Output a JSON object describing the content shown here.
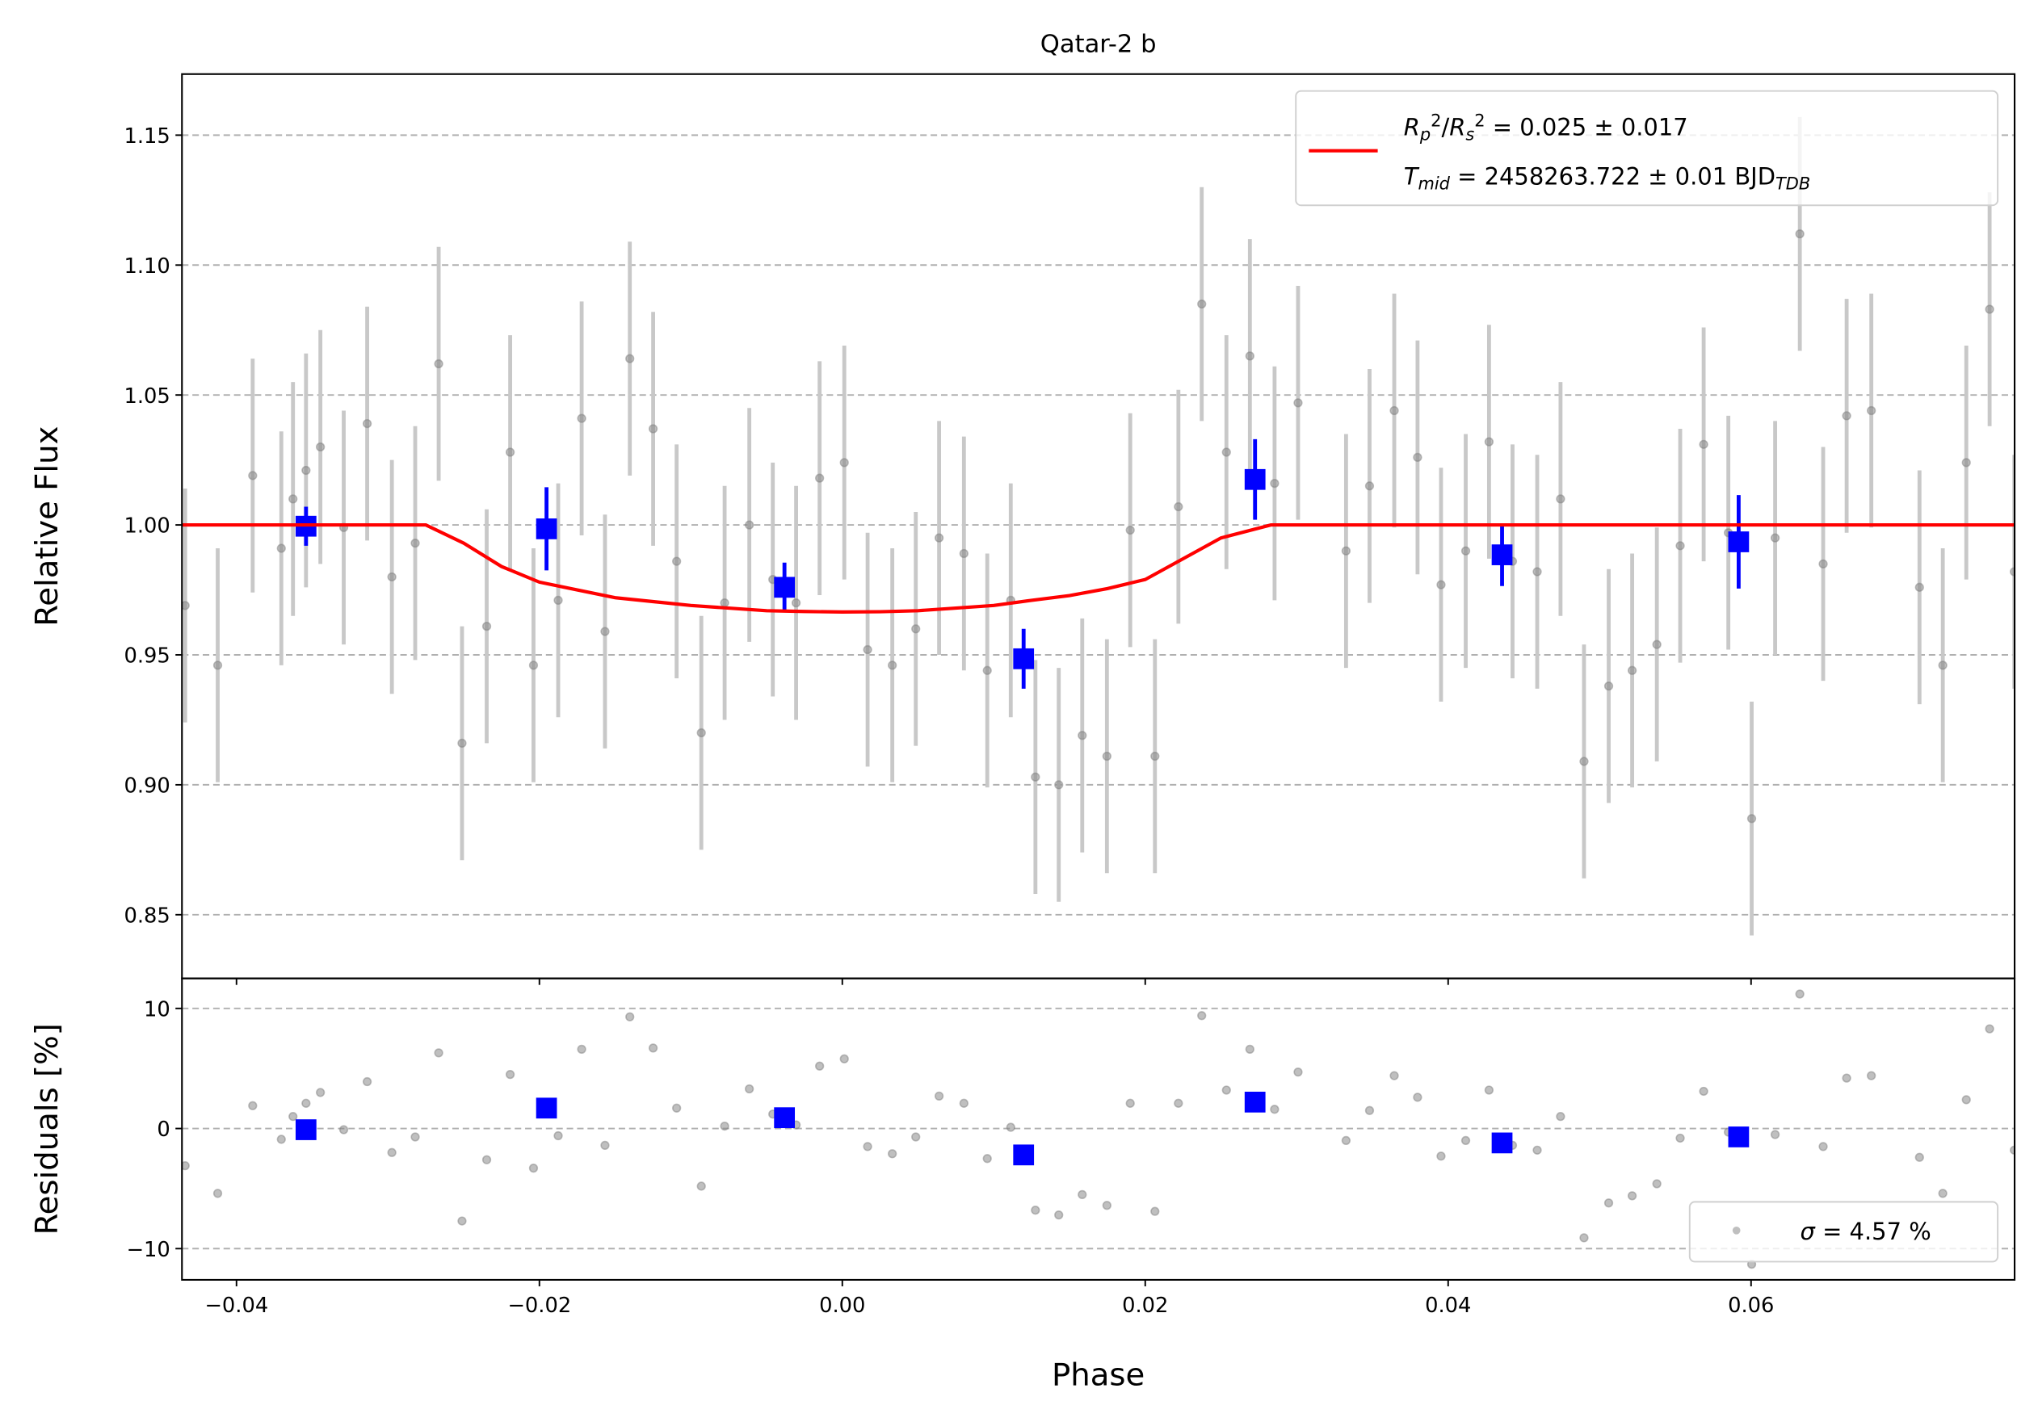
{
  "chart_data": [
    {
      "type": "scatter",
      "title": "Qatar-2 b",
      "ylabel": "Relative Flux",
      "xlim": [
        -0.0436,
        0.0774
      ],
      "ylim": [
        0.8255,
        1.1735
      ],
      "yticks": [
        0.85,
        {
          "value": 0.9,
          "label": "0.90"
        },
        0.95,
        {
          "value": 1.0,
          "label": "1.00"
        },
        1.05,
        {
          "value": 1.1,
          "label": "1.10"
        },
        1.15
      ],
      "grid": true,
      "legend": "upper right",
      "series": [
        {
          "kind": "points",
          "color": "#808080",
          "ecolor": "#c8c8c8",
          "yerr": 0.045,
          "x": [
            -0.04339,
            -0.04124,
            -0.03893,
            -0.03704,
            -0.03627,
            -0.03541,
            -0.03446,
            -0.03292,
            -0.03137,
            -0.02974,
            -0.0282,
            -0.02665,
            -0.02511,
            -0.02348,
            -0.02193,
            -0.02039,
            -0.01876,
            -0.01721,
            -0.01567,
            -0.01403,
            -0.01249,
            -0.01094,
            -0.00931,
            -0.00777,
            -0.00614,
            -0.00459,
            -0.00305,
            -0.0015,
            0.00013,
            0.00167,
            0.0033,
            0.00485,
            0.00639,
            0.00803,
            0.00957,
            0.01112,
            0.01275,
            0.01429,
            0.01584,
            0.01747,
            0.01901,
            0.02064,
            0.02219,
            0.02373,
            0.02536,
            0.02691,
            0.02854,
            0.03009,
            0.03326,
            0.03481,
            0.03644,
            0.03798,
            0.03953,
            0.04116,
            0.0427,
            0.04425,
            0.04588,
            0.04742,
            0.04897,
            0.0506,
            0.05215,
            0.05378,
            0.05532,
            0.05687,
            0.0585,
            0.06004,
            0.06159,
            0.06322,
            0.06476,
            0.06631,
            0.06794,
            0.07112,
            0.07266,
            0.07421,
            0.07575,
            0.07738
          ],
          "values": [
            0.969,
            0.946,
            1.019,
            0.991,
            1.01,
            1.021,
            1.03,
            0.999,
            1.039,
            0.98,
            0.993,
            1.062,
            0.916,
            0.961,
            1.028,
            0.946,
            0.971,
            1.041,
            0.959,
            1.064,
            1.037,
            0.986,
            0.92,
            0.97,
            1.0,
            0.979,
            0.97,
            1.018,
            1.024,
            0.952,
            0.946,
            0.96,
            0.995,
            0.989,
            0.944,
            0.971,
            0.903,
            0.9,
            0.919,
            0.911,
            0.998,
            0.911,
            1.007,
            1.085,
            1.028,
            1.065,
            1.016,
            1.047,
            0.99,
            1.015,
            1.044,
            1.026,
            0.977,
            0.99,
            1.032,
            0.986,
            0.982,
            1.01,
            0.909,
            0.938,
            0.944,
            0.954,
            0.992,
            1.031,
            0.997,
            0.887,
            0.995,
            1.112,
            0.985,
            1.042,
            1.044,
            0.976,
            0.946,
            1.024,
            1.083,
            0.982
          ]
        },
        {
          "kind": "binned",
          "color": "#0000ff",
          "x": [
            -0.03541,
            -0.01953,
            -0.00382,
            0.01197,
            0.02725,
            0.04356,
            0.05918
          ],
          "values": [
            0.9995,
            0.9985,
            0.976,
            0.9485,
            1.0175,
            0.9885,
            0.9935
          ],
          "yerr": [
            0.0075,
            0.016,
            0.0095,
            0.0115,
            0.0155,
            0.012,
            0.018
          ]
        },
        {
          "kind": "model",
          "color": "#ff0000",
          "name": [
            [
              "R",
              "p",
              "2",
              "/",
              "R",
              "s",
              "2",
              " = 0.025 ± 0.017"
            ],
            [
              "T",
              "mid",
              " = 2458263.722 ± 0.01 BJD",
              "TDB"
            ]
          ],
          "x": [
            -0.0436,
            -0.0275,
            -0.025,
            -0.0225,
            -0.02,
            -0.0175,
            -0.015,
            -0.0125,
            -0.01,
            -0.0075,
            -0.005,
            -0.0025,
            0.0,
            0.0025,
            0.005,
            0.0075,
            0.01,
            0.0125,
            0.015,
            0.0175,
            0.02,
            0.0225,
            0.025,
            0.0283,
            0.0774
          ],
          "values": [
            1.0,
            1.0,
            0.993,
            0.984,
            0.978,
            0.975,
            0.972,
            0.9705,
            0.969,
            0.968,
            0.967,
            0.9667,
            0.9665,
            0.9666,
            0.967,
            0.968,
            0.969,
            0.971,
            0.9728,
            0.9755,
            0.979,
            0.987,
            0.995,
            1.0,
            1.0
          ]
        }
      ]
    },
    {
      "type": "scatter",
      "xlabel": "Phase",
      "ylabel": "Residuals [%]",
      "xlim": [
        -0.0436,
        0.0774
      ],
      "ylim": [
        -12.6,
        12.5
      ],
      "xticks": [
        {
          "value": -0.04,
          "label": "−0.04"
        },
        {
          "value": -0.02,
          "label": "−0.02"
        },
        {
          "value": 0,
          "label": "0.00"
        },
        0.02,
        0.04,
        0.06
      ],
      "yticks": [
        {
          "value": -10,
          "label": "−10"
        },
        0,
        10
      ],
      "grid": true,
      "legend": "lower right",
      "series": [
        {
          "kind": "points",
          "color": "#808080",
          "name": [
            "σ",
            " = 4.57 %"
          ],
          "x": [
            -0.04339,
            -0.04124,
            -0.03893,
            -0.03704,
            -0.03627,
            -0.03541,
            -0.03446,
            -0.03292,
            -0.03137,
            -0.02974,
            -0.0282,
            -0.02665,
            -0.02511,
            -0.02348,
            -0.02193,
            -0.02039,
            -0.01876,
            -0.01721,
            -0.01567,
            -0.01403,
            -0.01249,
            -0.01094,
            -0.00931,
            -0.00777,
            -0.00614,
            -0.00459,
            -0.00305,
            -0.0015,
            0.00013,
            0.00167,
            0.0033,
            0.00485,
            0.00639,
            0.00803,
            0.00957,
            0.01112,
            0.01275,
            0.01429,
            0.01584,
            0.01747,
            0.01901,
            0.02064,
            0.02219,
            0.02373,
            0.02536,
            0.02691,
            0.02854,
            0.03009,
            0.03326,
            0.03481,
            0.03644,
            0.03798,
            0.03953,
            0.04116,
            0.0427,
            0.04425,
            0.04588,
            0.04742,
            0.04897,
            0.0506,
            0.05215,
            0.05378,
            0.05532,
            0.05687,
            0.0585,
            0.06004,
            0.06159,
            0.06322,
            0.06476,
            0.06631,
            0.06794,
            0.07112,
            0.07266,
            0.07421,
            0.07575,
            0.07738
          ],
          "values": [
            -3.1,
            -5.4,
            1.9,
            -0.9,
            1.0,
            2.1,
            3.0,
            -0.1,
            3.9,
            -2.0,
            -0.7,
            6.3,
            -7.7,
            -2.6,
            4.5,
            -3.3,
            -0.6,
            6.6,
            -1.4,
            9.3,
            6.7,
            1.7,
            -4.8,
            0.2,
            3.3,
            1.2,
            0.3,
            5.2,
            5.8,
            -1.5,
            -2.1,
            -0.7,
            2.7,
            2.1,
            -2.5,
            0.1,
            -6.8,
            -7.2,
            -5.5,
            -6.4,
            2.1,
            -6.9,
            2.1,
            9.4,
            3.2,
            6.6,
            1.6,
            4.7,
            -1.0,
            1.5,
            4.4,
            2.6,
            -2.3,
            -1.0,
            3.2,
            -1.4,
            -1.8,
            1.0,
            -9.1,
            -6.2,
            -5.6,
            -4.6,
            -0.8,
            3.1,
            -0.3,
            -11.3,
            -0.5,
            11.2,
            -1.5,
            4.2,
            4.4,
            -2.4,
            -5.4,
            2.4,
            8.3,
            -1.8
          ]
        },
        {
          "kind": "binned",
          "color": "#0000ff",
          "x": [
            -0.03541,
            -0.01953,
            -0.00382,
            0.01197,
            0.02725,
            0.04356,
            0.05918
          ],
          "values": [
            -0.1,
            1.7,
            0.9,
            -2.2,
            2.2,
            -1.2,
            -0.7
          ]
        }
      ]
    }
  ]
}
